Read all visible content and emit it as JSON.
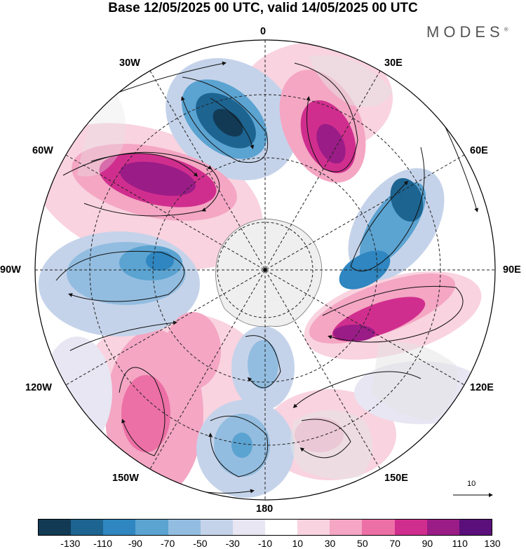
{
  "title": "Base 12/05/2025 00 UTC, valid 14/05/2025 00 UTC",
  "brand": "MODES",
  "brand_mark": "®",
  "longitude_labels": {
    "deg_0": "0",
    "deg_30E": "30E",
    "deg_60E": "60E",
    "deg_90E": "90E",
    "deg_120E": "120E",
    "deg_150E": "150E",
    "deg_180": "180",
    "deg_150W": "150W",
    "deg_120W": "120W",
    "deg_90W": "90W",
    "deg_60W": "60W",
    "deg_30W": "30W"
  },
  "reference_vector_label": "10",
  "colorbar": {
    "colors": [
      "#123a55",
      "#1d6491",
      "#2f86c0",
      "#5ba3d1",
      "#93bde0",
      "#c5d3ea",
      "#e7e6f2",
      "#ffffff",
      "#f9d3df",
      "#f4a6c3",
      "#ec6fa5",
      "#d02e8e",
      "#9a1c87",
      "#5a0f7a"
    ],
    "ticks": [
      "-130",
      "-110",
      "-90",
      "-70",
      "-50",
      "-30",
      "-10",
      "10",
      "30",
      "50",
      "70",
      "90",
      "110",
      "130"
    ]
  },
  "colors": {
    "land": "#e4e4e4",
    "antarctica": "#efefef",
    "streamline": "#111111"
  }
}
